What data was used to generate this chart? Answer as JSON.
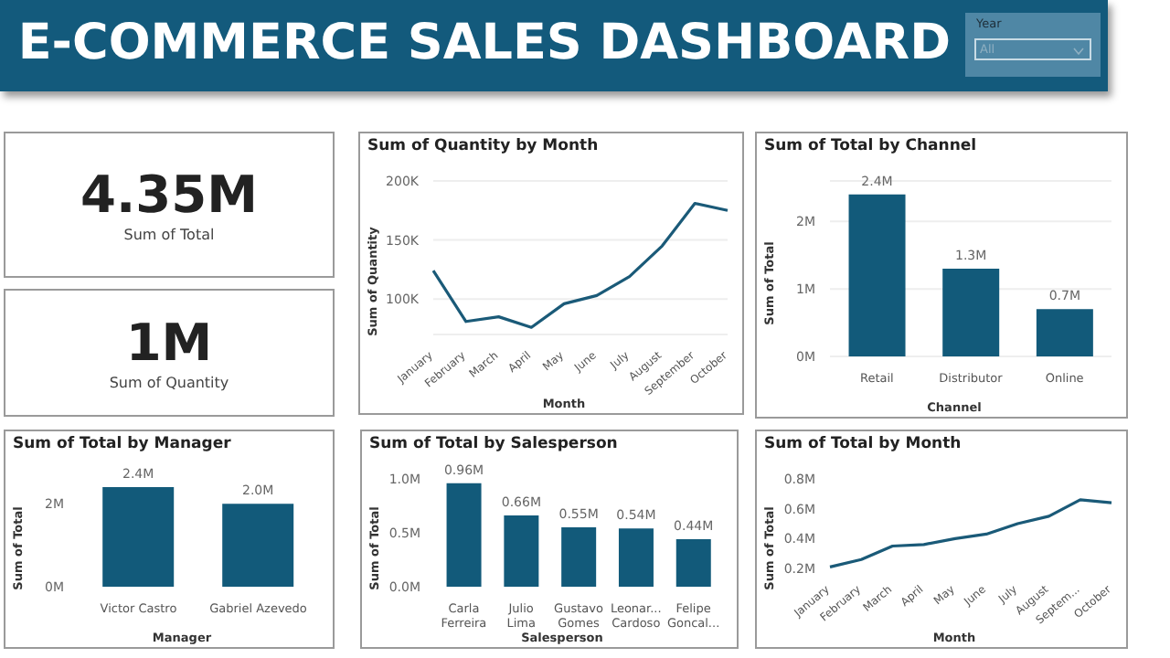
{
  "chart_data": [
    {
      "type": "other",
      "title": "E-COMMERCE SALES DASHBOARD"
    },
    {
      "type": "other",
      "title": "Year",
      "annotations": [
        "All"
      ]
    },
    {
      "type": "other",
      "annotations": [
        "4.35M",
        "Sum of Total"
      ]
    },
    {
      "type": "other",
      "annotations": [
        "1M",
        "Sum of Quantity"
      ]
    },
    {
      "type": "line",
      "title": "Sum of Quantity by Month",
      "xlabel": "Month",
      "ylabel": "Sum of Quantity",
      "categories": [
        "January",
        "February",
        "March",
        "April",
        "May",
        "June",
        "July",
        "August",
        "September",
        "October"
      ],
      "values": [
        124000,
        81000,
        85000,
        76000,
        96000,
        103000,
        119000,
        145000,
        181000,
        175000
      ],
      "color": "#1a5a78",
      "ylim": [
        70000,
        200000
      ],
      "yticks": [
        {
          "value": 100000,
          "label": "100K"
        },
        {
          "value": 150000,
          "label": "150K"
        },
        {
          "value": 200000,
          "label": "200K"
        }
      ],
      "grid": "y"
    },
    {
      "type": "bar",
      "title": "Sum of Total by Channel",
      "xlabel": "Channel",
      "ylabel": "Sum of Total",
      "categories": [
        "Retail",
        "Distributor",
        "Online"
      ],
      "values": [
        2400000,
        1300000,
        700000
      ],
      "value_labels": [
        "2.4M",
        "1.3M",
        "0.7M"
      ],
      "color": "#125a7a",
      "ylim": [
        0,
        2600000
      ],
      "yticks": [
        {
          "value": 0,
          "label": "0M"
        },
        {
          "value": 1000000,
          "label": "1M"
        },
        {
          "value": 2000000,
          "label": "2M"
        }
      ],
      "grid": "y"
    },
    {
      "type": "bar",
      "title": "Sum of Total by Manager",
      "xlabel": "Manager",
      "ylabel": "Sum of Total",
      "categories": [
        "Victor Castro",
        "Gabriel Azevedo"
      ],
      "values": [
        2400000,
        2000000
      ],
      "value_labels": [
        "2.4M",
        "2.0M"
      ],
      "color": "#125a7a",
      "ylim": [
        0,
        2600000
      ],
      "yticks": [
        {
          "value": 0,
          "label": "0M"
        },
        {
          "value": 2000000,
          "label": "2M"
        }
      ]
    },
    {
      "type": "bar",
      "title": "Sum of Total by Salesperson",
      "xlabel": "Salesperson",
      "ylabel": "Sum of Total",
      "categories": [
        "Carla Ferreira",
        "Julio Lima",
        "Gustavo Gomes",
        "Leonar... Cardoso",
        "Felipe Goncal..."
      ],
      "values": [
        960000,
        660000,
        550000,
        540000,
        440000
      ],
      "value_labels": [
        "0.96M",
        "0.66M",
        "0.55M",
        "0.54M",
        "0.44M"
      ],
      "color": "#125a7a",
      "ylim": [
        0,
        1000000
      ],
      "yticks": [
        {
          "value": 0,
          "label": "0.0M"
        },
        {
          "value": 500000,
          "label": "0.5M"
        },
        {
          "value": 1000000,
          "label": "1.0M"
        }
      ]
    },
    {
      "type": "line",
      "title": "Sum of Total by Month",
      "xlabel": "Month",
      "ylabel": "Sum of Total",
      "categories": [
        "January",
        "February",
        "March",
        "April",
        "May",
        "June",
        "July",
        "August",
        "Septem...",
        "October"
      ],
      "values": [
        210000,
        260000,
        350000,
        360000,
        400000,
        430000,
        500000,
        550000,
        660000,
        640000
      ],
      "color": "#1a5a78",
      "ylim": [
        200000,
        800000
      ],
      "yticks": [
        {
          "value": 200000,
          "label": "0.2M"
        },
        {
          "value": 400000,
          "label": "0.4M"
        },
        {
          "value": 600000,
          "label": "0.6M"
        },
        {
          "value": 800000,
          "label": "0.8M"
        }
      ]
    }
  ]
}
